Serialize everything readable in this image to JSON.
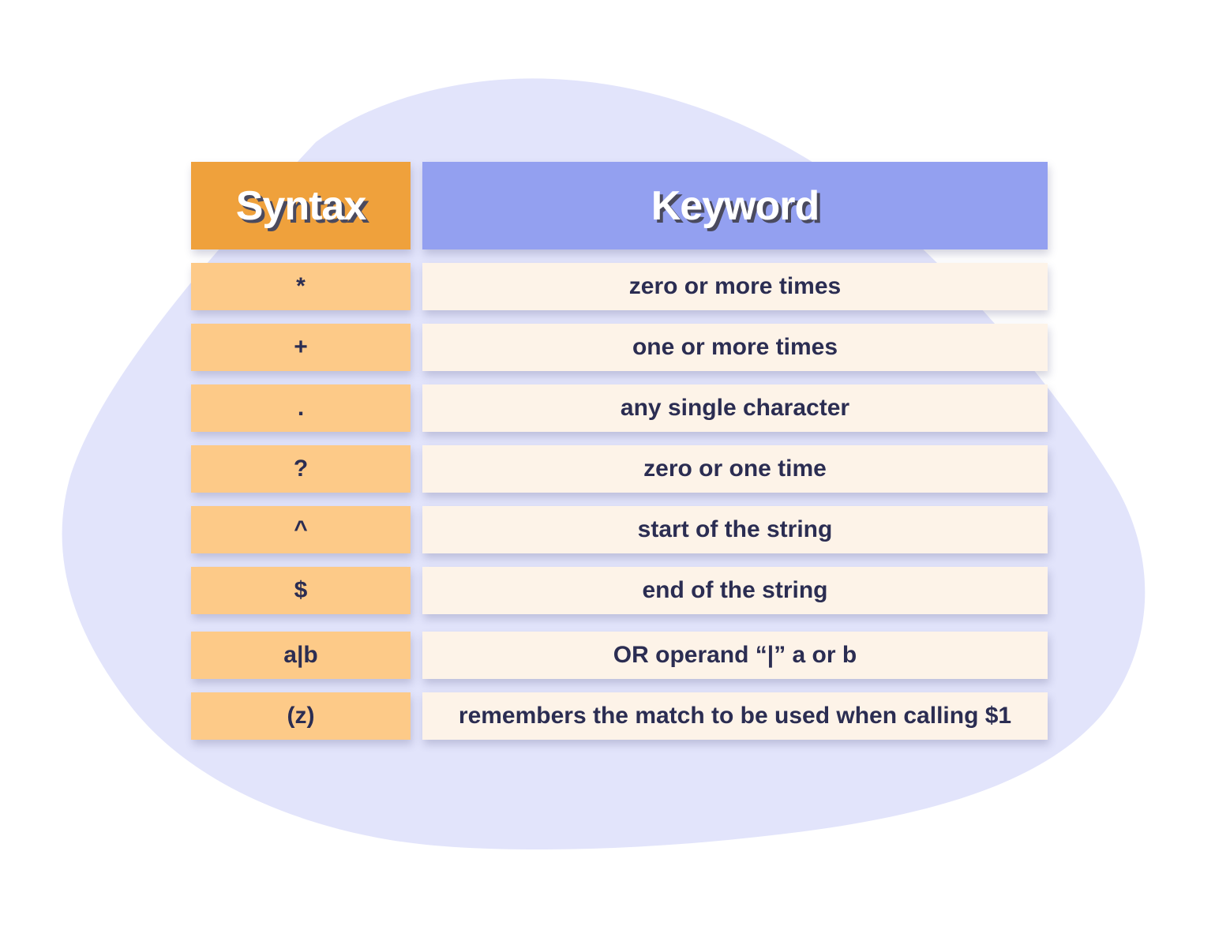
{
  "colors": {
    "blob": "#e2e4fb",
    "header_syntax": "#efa13c",
    "header_keyword": "#93a0f0",
    "syntax_cell": "#fdca88",
    "keyword_cell": "#fdf3e8",
    "text": "#2b2d52"
  },
  "table": {
    "headers": {
      "syntax": "Syntax",
      "keyword": "Keyword"
    },
    "rows": [
      {
        "syntax": "*",
        "keyword": "zero or more times"
      },
      {
        "syntax": "+",
        "keyword": "one or more times"
      },
      {
        "syntax": ".",
        "keyword": "any single character"
      },
      {
        "syntax": "?",
        "keyword": "zero or one time"
      },
      {
        "syntax": "^",
        "keyword": "start of the string"
      },
      {
        "syntax": "$",
        "keyword": "end of the string"
      },
      {
        "syntax": "a|b",
        "keyword": "OR operand “|” a or b"
      },
      {
        "syntax": "(z)",
        "keyword": "remembers the match to be used when calling $1"
      }
    ]
  }
}
